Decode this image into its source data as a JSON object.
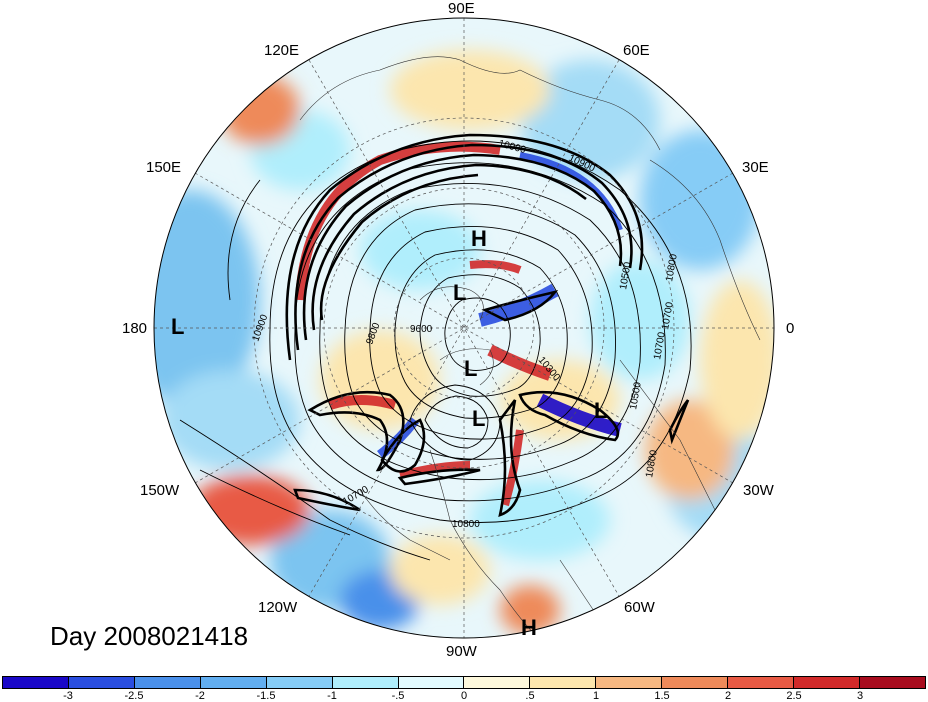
{
  "longitude_labels": {
    "e90": "90E",
    "e120": "120E",
    "e60": "60E",
    "e150": "150E",
    "e30": "30E",
    "d180": "180",
    "d0": "0",
    "w150": "150W",
    "w30": "30W",
    "w120": "120W",
    "w60": "60W",
    "w90": "90W"
  },
  "pressure_centers": {
    "h1": "H",
    "l1": "L",
    "l2": "L",
    "l3": "L",
    "l4": "L",
    "l5": "L",
    "h2": "H"
  },
  "contour_labels": [
    "10900",
    "10900",
    "10900",
    "10800",
    "10500",
    "9800",
    "9600",
    "10300",
    "10500",
    "10700",
    "10700",
    "10800",
    "10700",
    "10800"
  ],
  "day_label": "Day 2008021418",
  "colorbar": {
    "colors": [
      "#1a08c8",
      "#2a4ee0",
      "#4a90ea",
      "#62aef0",
      "#86ccf6",
      "#b0eefc",
      "#e2fafe",
      "#fdf8dc",
      "#fce6ae",
      "#f6b882",
      "#ee8a5a",
      "#e85a44",
      "#d22a2a",
      "#a80c1e"
    ],
    "ticks": [
      "-3",
      "-2.5",
      "-2",
      "-1.5",
      "-1",
      "-.5",
      "0",
      ".5",
      "1",
      "1.5",
      "2",
      "2.5",
      "3"
    ]
  }
}
